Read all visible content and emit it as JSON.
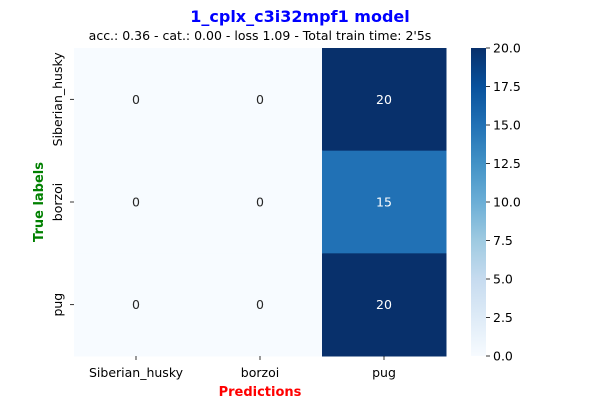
{
  "chart_data": {
    "type": "heatmap",
    "title": "1_cplx_c3i32mpf1 model",
    "subtitle": "acc.: 0.36 - cat.: 0.00 - loss 1.09 - Total train time: 2'5s",
    "xlabel": "Predictions",
    "ylabel": "True labels",
    "x_categories": [
      "Siberian_husky",
      "borzoi",
      "pug"
    ],
    "y_categories": [
      "Siberian_husky",
      "borzoi",
      "pug"
    ],
    "matrix": [
      [
        0,
        0,
        20
      ],
      [
        0,
        0,
        15
      ],
      [
        0,
        0,
        20
      ]
    ],
    "colorbar": {
      "colormap": "Blues",
      "range": [
        0,
        20
      ],
      "ticks": [
        0.0,
        2.5,
        5.0,
        7.5,
        10.0,
        12.5,
        15.0,
        17.5,
        20.0
      ],
      "tick_labels": [
        "0.0",
        "2.5",
        "5.0",
        "7.5",
        "10.0",
        "12.5",
        "15.0",
        "17.5",
        "20.0"
      ]
    },
    "colors": {
      "title": "#0000ff",
      "xlabel": "#ff0000",
      "ylabel": "#008000"
    }
  }
}
